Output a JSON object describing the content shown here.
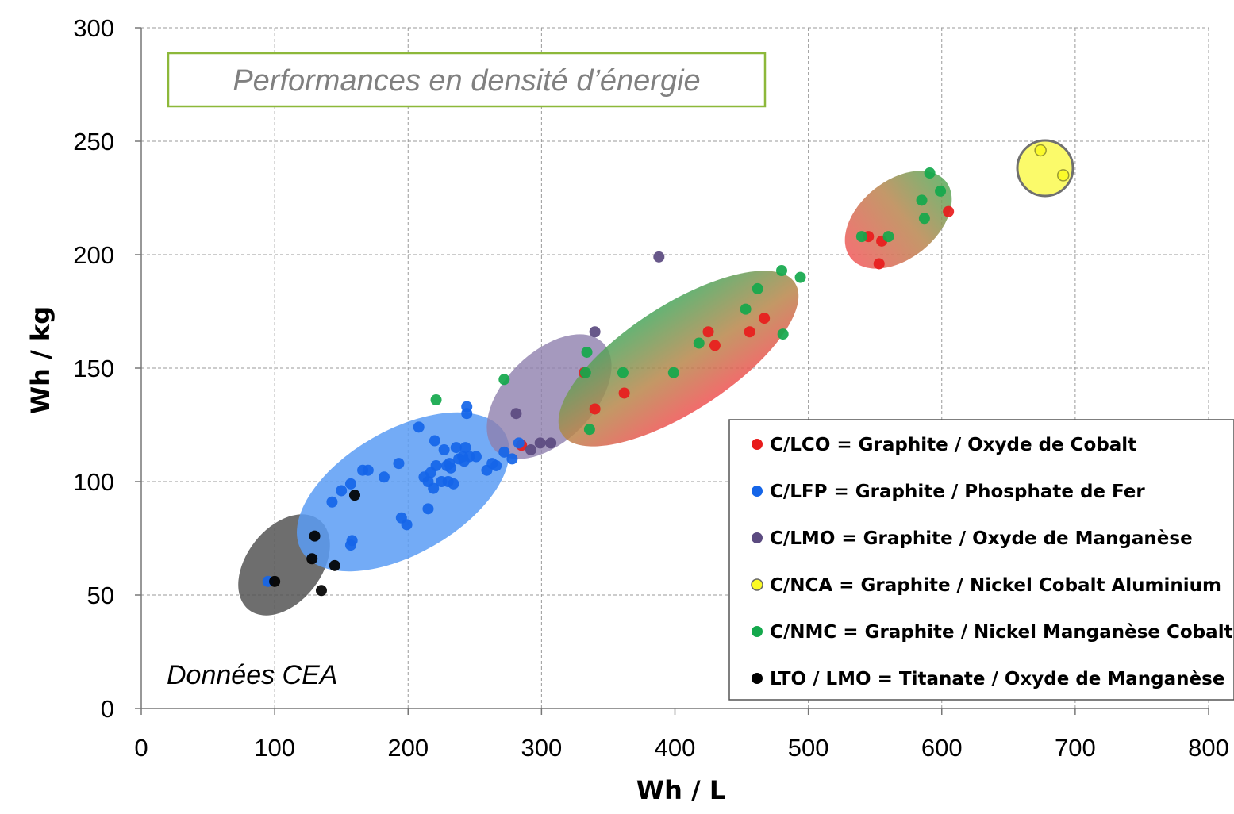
{
  "chart_data": {
    "type": "scatter",
    "title": "Performances en densité d’énergie",
    "annotation": "Données CEA",
    "xlabel": "Wh / L",
    "ylabel": "Wh / kg",
    "xlim": [
      0,
      800
    ],
    "ylim": [
      0,
      300
    ],
    "x_ticks": [
      0,
      100,
      200,
      300,
      400,
      500,
      600,
      700,
      800
    ],
    "y_ticks": [
      0,
      50,
      100,
      150,
      200,
      250,
      300
    ],
    "grid": "dashed",
    "legend_position": "bottom-right",
    "series": [
      {
        "name": "C/LCO = Graphite / Oxyde de Cobalt",
        "color": "#e81c1c",
        "points": [
          [
            285,
            116
          ],
          [
            553,
            196
          ],
          [
            605,
            219
          ],
          [
            425,
            166
          ],
          [
            430,
            160
          ],
          [
            467,
            172
          ],
          [
            456,
            166
          ],
          [
            362,
            139
          ],
          [
            340,
            132
          ],
          [
            332,
            148
          ],
          [
            555,
            206
          ],
          [
            545,
            208
          ]
        ]
      },
      {
        "name": "C/LFP = Graphite / Phosphate de Fer",
        "color": "#1565e8",
        "points": [
          [
            95,
            56
          ],
          [
            143,
            91
          ],
          [
            150,
            96
          ],
          [
            157,
            99
          ],
          [
            157,
            72
          ],
          [
            158,
            74
          ],
          [
            166,
            105
          ],
          [
            170,
            105
          ],
          [
            182,
            102
          ],
          [
            193,
            108
          ],
          [
            195,
            84
          ],
          [
            199,
            81
          ],
          [
            208,
            124
          ],
          [
            212,
            102
          ],
          [
            215,
            100
          ],
          [
            215,
            88
          ],
          [
            217,
            104
          ],
          [
            219,
            97
          ],
          [
            220,
            118
          ],
          [
            221,
            107
          ],
          [
            225,
            100
          ],
          [
            227,
            114
          ],
          [
            229,
            107
          ],
          [
            230,
            100
          ],
          [
            231,
            108
          ],
          [
            234,
            99
          ],
          [
            236,
            115
          ],
          [
            238,
            110
          ],
          [
            241,
            111
          ],
          [
            243,
            115
          ],
          [
            244,
            133
          ],
          [
            244,
            130
          ],
          [
            246,
            111
          ],
          [
            251,
            111
          ],
          [
            259,
            105
          ],
          [
            263,
            108
          ],
          [
            266,
            107
          ],
          [
            272,
            113
          ],
          [
            278,
            110
          ],
          [
            283,
            117
          ],
          [
            242,
            109
          ],
          [
            232,
            106
          ]
        ]
      },
      {
        "name": "C/LMO = Graphite / Oxyde de Manganèse",
        "color": "#5b4a80",
        "points": [
          [
            281,
            130
          ],
          [
            292,
            114
          ],
          [
            299,
            117
          ],
          [
            307,
            117
          ],
          [
            340,
            166
          ],
          [
            388,
            199
          ]
        ]
      },
      {
        "name": "C/NCA = Graphite / Nickel Cobalt Aluminium",
        "color": "#fbfa25",
        "points": [
          [
            674,
            246
          ],
          [
            691,
            235
          ]
        ]
      },
      {
        "name": "C/NMC = Graphite / Nickel Manganèse Cobalt",
        "color": "#14a84c",
        "points": [
          [
            221,
            136
          ],
          [
            272,
            145
          ],
          [
            333,
            148
          ],
          [
            334,
            157
          ],
          [
            336,
            123
          ],
          [
            361,
            148
          ],
          [
            399,
            148
          ],
          [
            418,
            161
          ],
          [
            453,
            176
          ],
          [
            462,
            185
          ],
          [
            480,
            193
          ],
          [
            481,
            165
          ],
          [
            494,
            190
          ],
          [
            540,
            208
          ],
          [
            560,
            208
          ],
          [
            585,
            224
          ],
          [
            587,
            216
          ],
          [
            591,
            236
          ],
          [
            599,
            228
          ]
        ]
      },
      {
        "name": "LTO / LMO = Titanate / Oxyde de Manganèse",
        "color": "#000000",
        "points": [
          [
            100,
            56
          ],
          [
            128,
            66
          ],
          [
            130,
            76
          ],
          [
            135,
            52
          ],
          [
            145,
            63
          ],
          [
            160,
            94
          ]
        ]
      }
    ]
  }
}
